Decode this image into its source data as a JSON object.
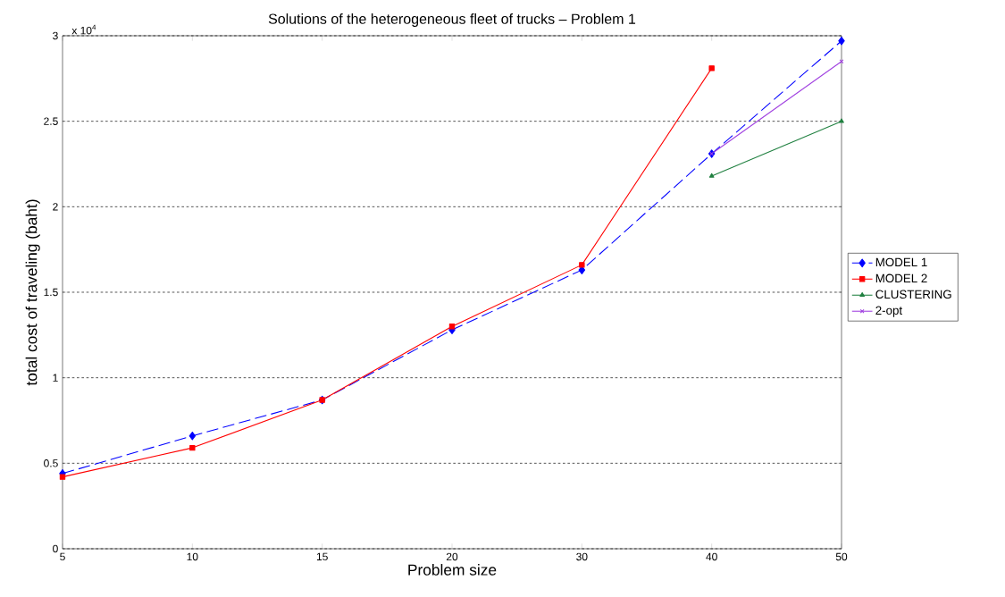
{
  "chart_data": {
    "type": "line",
    "title": "Solutions of the heterogeneous fleet of trucks – Problem 1",
    "xlabel": "Problem size",
    "ylabel": "total cost of traveling (baht)",
    "annotations": [
      "x 10$^{4}$"
    ],
    "categories": [
      "5",
      "10",
      "15",
      "20",
      "30",
      "40",
      "50"
    ],
    "series": [
      {
        "name": "MODEL 1",
        "color": "#0000ff",
        "marker": "diamond",
        "line_style": "dashed",
        "values": [
          0.44,
          0.66,
          0.87,
          1.28,
          1.63,
          2.31,
          2.97
        ]
      },
      {
        "name": "MODEL 2",
        "color": "#ff0000",
        "marker": "square",
        "line_style": "solid",
        "values": [
          0.42,
          0.59,
          0.87,
          1.3,
          1.66,
          2.81,
          null
        ]
      },
      {
        "name": "CLUSTERING",
        "color": "#208040",
        "marker": "triangle",
        "line_style": "solid",
        "values": [
          null,
          null,
          null,
          null,
          null,
          2.18,
          2.5
        ]
      },
      {
        "name": "2-opt",
        "color": "#a040e0",
        "marker": "cross",
        "line_style": "solid",
        "values": [
          null,
          null,
          null,
          null,
          null,
          2.31,
          2.85
        ]
      }
    ],
    "ylim": [
      0,
      3
    ],
    "yticks": [
      0,
      0.5,
      1,
      1.5,
      2,
      2.5,
      3
    ],
    "grid": "y",
    "legend": "right"
  }
}
